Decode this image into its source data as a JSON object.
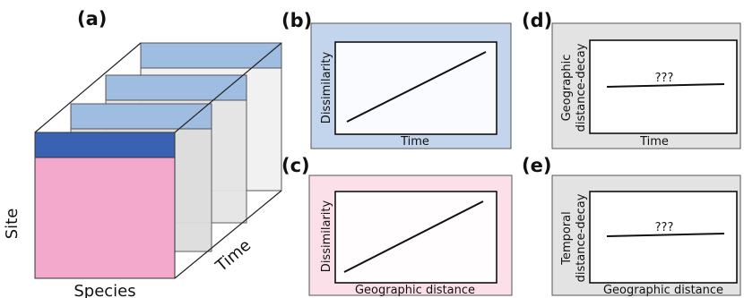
{
  "panel_a": {
    "letter": "(a)",
    "axis_site": "Site",
    "axis_species": "Species",
    "axis_time": "Time",
    "colors": {
      "front_face": "#f2a9cb",
      "front_band": "#3a62b3",
      "back_band": "#9fbce1",
      "back_face": "#f0f1f0",
      "mid_face": "#e4e5e4"
    }
  },
  "panel_b": {
    "letter": "(b)",
    "ylabel": "Dissimilarity",
    "xlabel": "Time",
    "trend": "increasing",
    "background": "#c3d5ec"
  },
  "panel_c": {
    "letter": "(c)",
    "ylabel": "Dissimilarity",
    "xlabel": "Geographic distance",
    "trend": "increasing",
    "background": "#fbe0ea"
  },
  "panel_d": {
    "letter": "(d)",
    "ylabel_line1": "Geographic",
    "ylabel_line2": "distance-decay",
    "xlabel": "Time",
    "annotation": "???",
    "trend": "flat",
    "background": "#e3e3e3"
  },
  "panel_e": {
    "letter": "(e)",
    "ylabel_line1": "Temporal",
    "ylabel_line2": "distance-decay",
    "xlabel": "Geographic distance",
    "annotation": "???",
    "trend": "flat",
    "background": "#e3e3e3"
  }
}
